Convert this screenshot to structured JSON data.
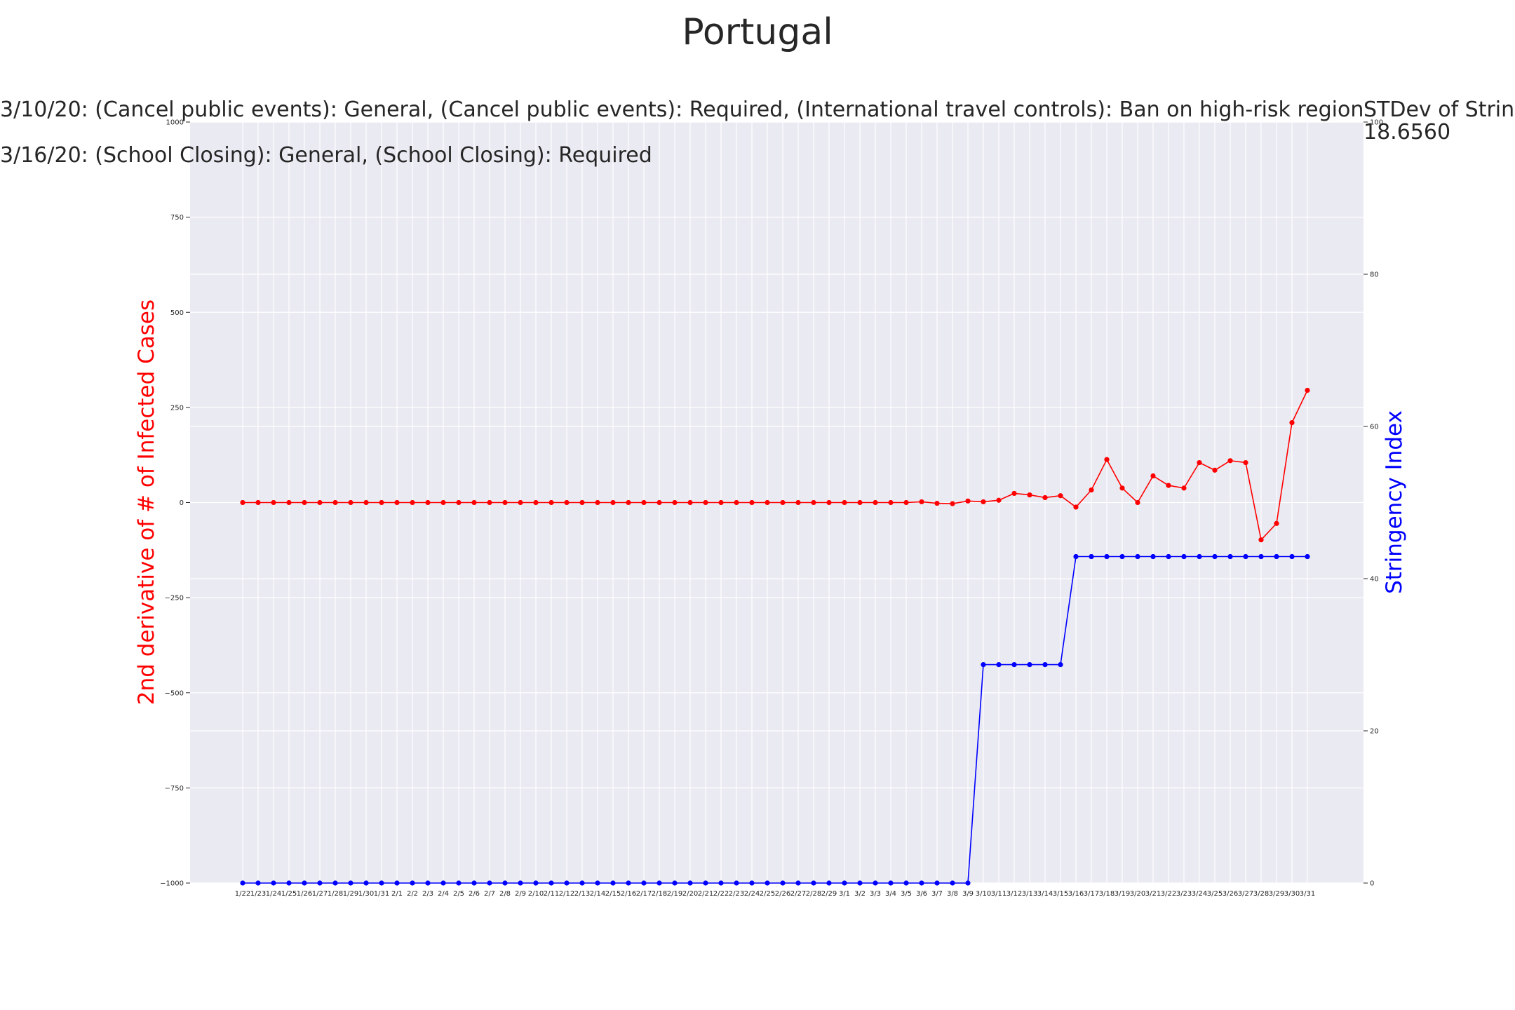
{
  "chart_data": {
    "type": "line",
    "title": "Portugal",
    "annotations": [
      "3/10/20: (Cancel public events): General, (Cancel public events): Required, (International travel controls): Ban on high-risk region",
      "3/16/20: (School Closing): General, (School Closing): Required"
    ],
    "stdev_label": "STDev of Stringency Index:",
    "stdev_value": "18.6560",
    "ylabel_left": "2nd derivative of # of Infected Cases",
    "ylabel_right": "Stringency Index",
    "ylim_left": [
      -1000,
      1000
    ],
    "ylim_right": [
      0,
      100
    ],
    "yticks_left": [
      -1000,
      -750,
      -500,
      -250,
      0,
      250,
      500,
      750,
      1000
    ],
    "yticks_right": [
      0,
      20,
      40,
      60,
      80,
      100
    ],
    "grid": true,
    "x": [
      "1/22",
      "1/23",
      "1/24",
      "1/25",
      "1/26",
      "1/27",
      "1/28",
      "1/29",
      "1/30",
      "1/31",
      "2/1",
      "2/2",
      "2/3",
      "2/4",
      "2/5",
      "2/6",
      "2/7",
      "2/8",
      "2/9",
      "2/10",
      "2/11",
      "2/12",
      "2/13",
      "2/14",
      "2/15",
      "2/16",
      "2/17",
      "2/18",
      "2/19",
      "2/20",
      "2/21",
      "2/22",
      "2/23",
      "2/24",
      "2/25",
      "2/26",
      "2/27",
      "2/28",
      "2/29",
      "3/1",
      "3/2",
      "3/3",
      "3/4",
      "3/5",
      "3/6",
      "3/7",
      "3/8",
      "3/9",
      "3/10",
      "3/11",
      "3/12",
      "3/13",
      "3/14",
      "3/15",
      "3/16",
      "3/17",
      "3/18",
      "3/19",
      "3/20",
      "3/21",
      "3/22",
      "3/23",
      "3/24",
      "3/25",
      "3/26",
      "3/27",
      "3/28",
      "3/29",
      "3/30",
      "3/31"
    ],
    "series": [
      {
        "axis": "left",
        "color": "#ff0000",
        "values": [
          0,
          0,
          0,
          0,
          0,
          0,
          0,
          0,
          0,
          0,
          0,
          0,
          0,
          0,
          0,
          0,
          0,
          0,
          0,
          0,
          0,
          0,
          0,
          0,
          0,
          0,
          0,
          0,
          0,
          0,
          0,
          0,
          0,
          0,
          0,
          0,
          0,
          0,
          0,
          0,
          0,
          0,
          0,
          0,
          2,
          -2,
          -3,
          4,
          2,
          6,
          24,
          20,
          13,
          18,
          -12,
          33,
          113,
          38,
          0,
          70,
          45,
          38,
          105,
          85,
          110,
          105,
          -98,
          -55,
          210,
          295
        ]
      },
      {
        "axis": "right",
        "color": "#0000ff",
        "values": [
          0,
          0,
          0,
          0,
          0,
          0,
          0,
          0,
          0,
          0,
          0,
          0,
          0,
          0,
          0,
          0,
          0,
          0,
          0,
          0,
          0,
          0,
          0,
          0,
          0,
          0,
          0,
          0,
          0,
          0,
          0,
          0,
          0,
          0,
          0,
          0,
          0,
          0,
          0,
          0,
          0,
          0,
          0,
          0,
          0,
          0,
          0,
          0,
          28.7,
          28.7,
          28.7,
          28.7,
          28.7,
          28.7,
          42.9,
          42.9,
          42.9,
          42.9,
          42.9,
          42.9,
          42.9,
          42.9,
          42.9,
          42.9,
          42.9,
          42.9,
          42.9,
          42.9,
          42.9,
          42.9
        ]
      }
    ]
  }
}
